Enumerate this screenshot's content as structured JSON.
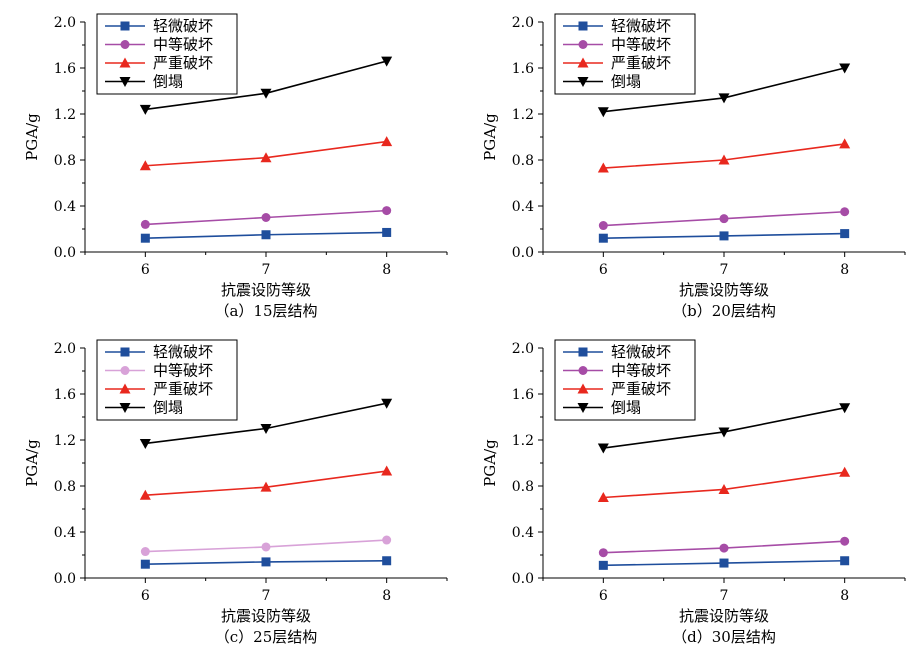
{
  "chart_data": [
    {
      "type": "line",
      "caption": "（a）15层结构",
      "xlabel": "抗震设防等级",
      "ylabel": "PGA/g",
      "x": [
        6,
        7,
        8
      ],
      "xticks": [
        "6",
        "7",
        "8"
      ],
      "ylim": [
        0,
        2.0
      ],
      "yticks": [
        "0.0",
        "0.4",
        "0.8",
        "1.2",
        "1.6",
        "2.0"
      ],
      "legend_position": "top-left",
      "series": [
        {
          "name": "轻微破坏",
          "color": "#1f4e9c",
          "marker": "square",
          "values": [
            0.12,
            0.15,
            0.17
          ]
        },
        {
          "name": "中等破坏",
          "color": "#a64ca6",
          "marker": "circle",
          "values": [
            0.24,
            0.3,
            0.36
          ]
        },
        {
          "name": "严重破坏",
          "color": "#e8281e",
          "marker": "triangle-up",
          "values": [
            0.75,
            0.82,
            0.96
          ]
        },
        {
          "name": "倒塌",
          "color": "#000000",
          "marker": "triangle-down",
          "values": [
            1.24,
            1.38,
            1.66
          ]
        }
      ]
    },
    {
      "type": "line",
      "caption": "（b）20层结构",
      "xlabel": "抗震设防等级",
      "ylabel": "PGA/g",
      "x": [
        6,
        7,
        8
      ],
      "xticks": [
        "6",
        "7",
        "8"
      ],
      "ylim": [
        0,
        2.0
      ],
      "yticks": [
        "0.0",
        "0.4",
        "0.8",
        "1.2",
        "1.6",
        "2.0"
      ],
      "legend_position": "top-left",
      "series": [
        {
          "name": "轻微破坏",
          "color": "#1f4e9c",
          "marker": "square",
          "values": [
            0.12,
            0.14,
            0.16
          ]
        },
        {
          "name": "中等破坏",
          "color": "#a64ca6",
          "marker": "circle",
          "values": [
            0.23,
            0.29,
            0.35
          ]
        },
        {
          "name": "严重破坏",
          "color": "#e8281e",
          "marker": "triangle-up",
          "values": [
            0.73,
            0.8,
            0.94
          ]
        },
        {
          "name": "倒塌",
          "color": "#000000",
          "marker": "triangle-down",
          "values": [
            1.22,
            1.34,
            1.6
          ]
        }
      ]
    },
    {
      "type": "line",
      "caption": "（c）25层结构",
      "xlabel": "抗震设防等级",
      "ylabel": "PGA/g",
      "x": [
        6,
        7,
        8
      ],
      "xticks": [
        "6",
        "7",
        "8"
      ],
      "ylim": [
        0,
        2.0
      ],
      "yticks": [
        "0.0",
        "0.4",
        "0.8",
        "1.2",
        "1.6",
        "2.0"
      ],
      "legend_position": "top-left",
      "series": [
        {
          "name": "轻微破坏",
          "color": "#1f4e9c",
          "marker": "square",
          "values": [
            0.12,
            0.14,
            0.15
          ]
        },
        {
          "name": "中等破坏",
          "color": "#d8a2d8",
          "marker": "circle",
          "values": [
            0.23,
            0.27,
            0.33
          ]
        },
        {
          "name": "严重破坏",
          "color": "#e8281e",
          "marker": "triangle-up",
          "values": [
            0.72,
            0.79,
            0.93
          ]
        },
        {
          "name": "倒塌",
          "color": "#000000",
          "marker": "triangle-down",
          "values": [
            1.17,
            1.3,
            1.52
          ]
        }
      ]
    },
    {
      "type": "line",
      "caption": "（d）30层结构",
      "xlabel": "抗震设防等级",
      "ylabel": "PGA/g",
      "x": [
        6,
        7,
        8
      ],
      "xticks": [
        "6",
        "7",
        "8"
      ],
      "ylim": [
        0,
        2.0
      ],
      "yticks": [
        "0.0",
        "0.4",
        "0.8",
        "1.2",
        "1.6",
        "2.0"
      ],
      "legend_position": "top-left",
      "series": [
        {
          "name": "轻微破坏",
          "color": "#1f4e9c",
          "marker": "square",
          "values": [
            0.11,
            0.13,
            0.15
          ]
        },
        {
          "name": "中等破坏",
          "color": "#a64ca6",
          "marker": "circle",
          "values": [
            0.22,
            0.26,
            0.32
          ]
        },
        {
          "name": "严重破坏",
          "color": "#e8281e",
          "marker": "triangle-up",
          "values": [
            0.7,
            0.77,
            0.92
          ]
        },
        {
          "name": "倒塌",
          "color": "#000000",
          "marker": "triangle-down",
          "values": [
            1.13,
            1.27,
            1.48
          ]
        }
      ]
    }
  ]
}
